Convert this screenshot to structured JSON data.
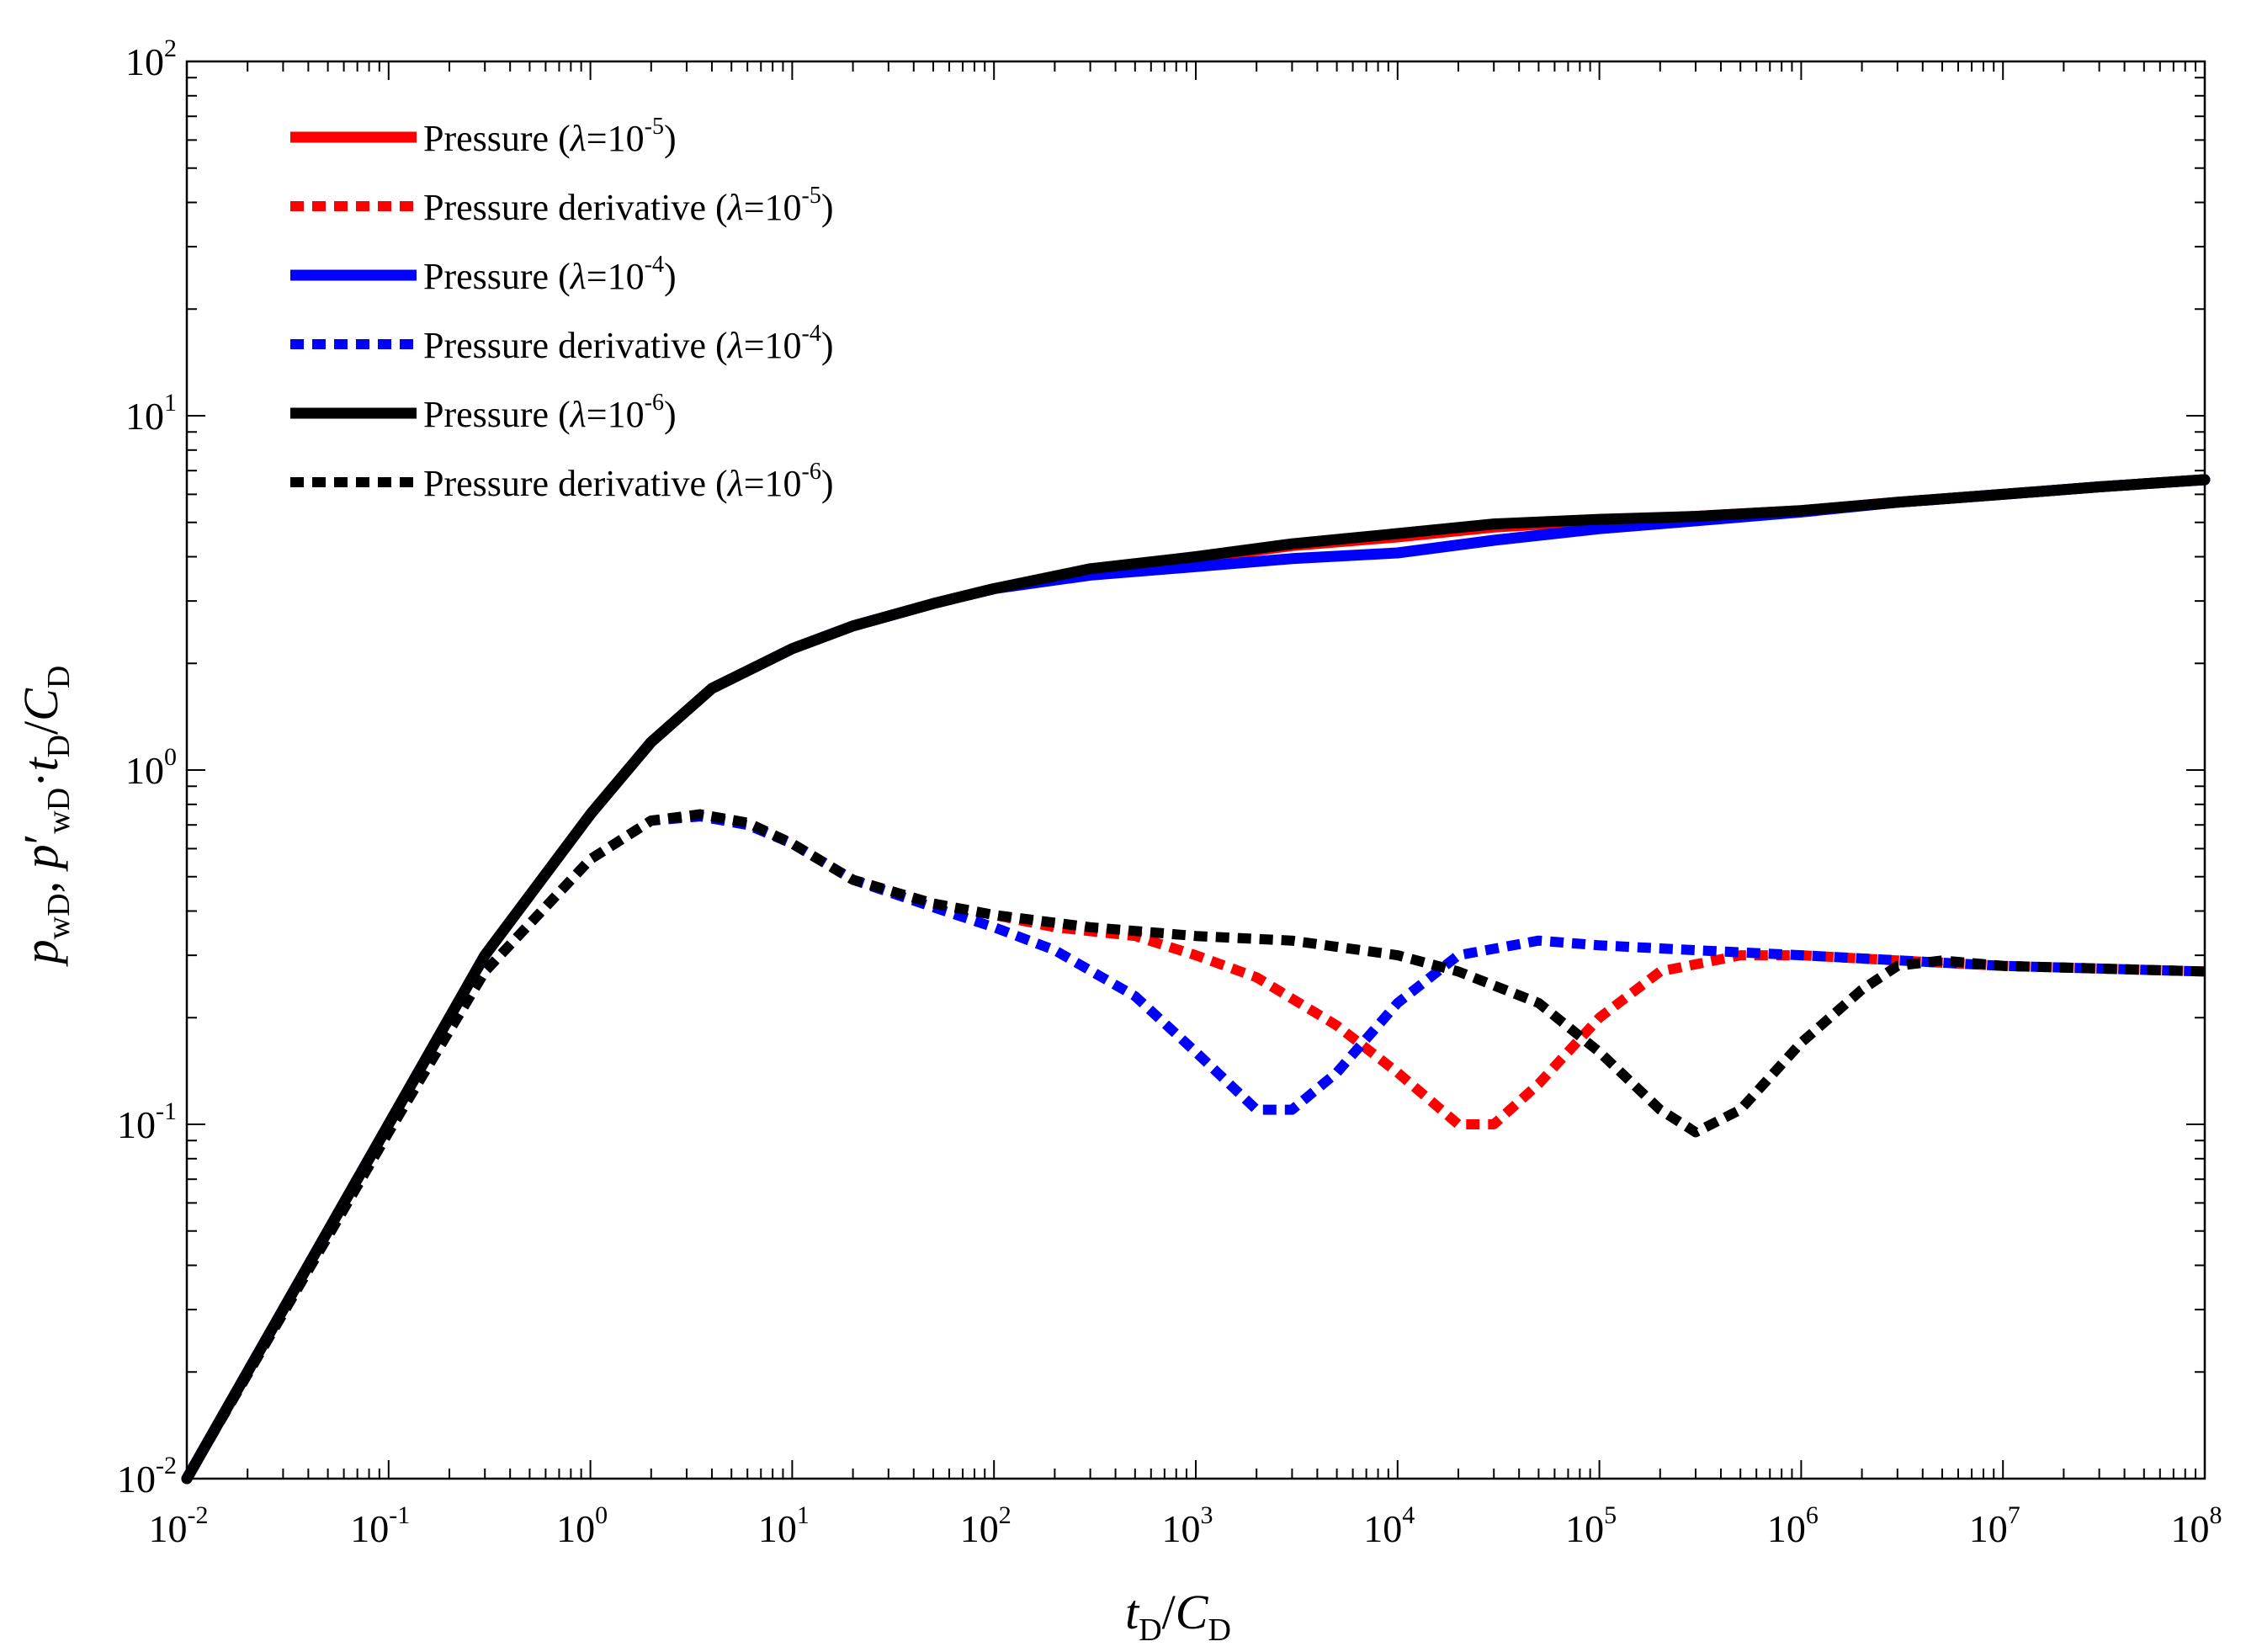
{
  "chart_data": {
    "type": "line",
    "title": "",
    "xlabel": "tD/CD",
    "ylabel": "pwD, p'wD·tD/CD",
    "x_scale": "log",
    "y_scale": "log",
    "xlim": [
      0.01,
      100000000
    ],
    "ylim": [
      0.01,
      100
    ],
    "x_ticks": [
      {
        "base": "10",
        "exp": "-2"
      },
      {
        "base": "10",
        "exp": "-1"
      },
      {
        "base": "10",
        "exp": "0"
      },
      {
        "base": "10",
        "exp": "1"
      },
      {
        "base": "10",
        "exp": "2"
      },
      {
        "base": "10",
        "exp": "3"
      },
      {
        "base": "10",
        "exp": "4"
      },
      {
        "base": "10",
        "exp": "5"
      },
      {
        "base": "10",
        "exp": "6"
      },
      {
        "base": "10",
        "exp": "7"
      },
      {
        "base": "10",
        "exp": "8"
      }
    ],
    "y_ticks": [
      {
        "base": "10",
        "exp": "-2"
      },
      {
        "base": "10",
        "exp": "-1"
      },
      {
        "base": "10",
        "exp": "0"
      },
      {
        "base": "10",
        "exp": "1"
      },
      {
        "base": "10",
        "exp": "2"
      }
    ],
    "grid": false,
    "legend_position": "top-left",
    "series": [
      {
        "name": "Pressure (λ=10-5)",
        "label_main": "Pressure (",
        "label_lambda": "λ",
        "label_eq": "=10",
        "label_exp": "-5",
        "label_close": ")",
        "color": "#ff0000",
        "style": "solid",
        "points": [
          [
            0.01,
            0.01
          ],
          [
            0.1,
            0.1
          ],
          [
            0.3,
            0.3
          ],
          [
            1,
            0.75
          ],
          [
            2,
            1.2
          ],
          [
            4,
            1.7
          ],
          [
            10,
            2.2
          ],
          [
            20,
            2.55
          ],
          [
            50,
            2.95
          ],
          [
            100,
            3.25
          ],
          [
            300,
            3.65
          ],
          [
            1000,
            3.95
          ],
          [
            3000,
            4.3
          ],
          [
            10000,
            4.55
          ],
          [
            30000,
            4.85
          ],
          [
            100000,
            5.05
          ],
          [
            300000,
            5.2
          ],
          [
            1000000,
            5.4
          ],
          [
            3000000,
            5.7
          ],
          [
            10000000,
            6.0
          ],
          [
            30000000,
            6.3
          ],
          [
            100000000,
            6.6
          ]
        ]
      },
      {
        "name": "Pressure derivative (λ=10-5)",
        "label_main": "Pressure derivative (",
        "label_lambda": "λ",
        "label_eq": "=10",
        "label_exp": "-5",
        "label_close": ")",
        "color": "#ff0000",
        "style": "dotted",
        "points": [
          [
            0.01,
            0.01
          ],
          [
            0.1,
            0.095
          ],
          [
            0.3,
            0.27
          ],
          [
            1,
            0.56
          ],
          [
            2,
            0.72
          ],
          [
            3.5,
            0.75
          ],
          [
            6,
            0.71
          ],
          [
            10,
            0.62
          ],
          [
            20,
            0.49
          ],
          [
            50,
            0.42
          ],
          [
            100,
            0.39
          ],
          [
            200,
            0.36
          ],
          [
            500,
            0.34
          ],
          [
            1000,
            0.3
          ],
          [
            2000,
            0.26
          ],
          [
            5000,
            0.19
          ],
          [
            10000,
            0.14
          ],
          [
            20000,
            0.1
          ],
          [
            30000,
            0.1
          ],
          [
            50000,
            0.13
          ],
          [
            100000,
            0.2
          ],
          [
            200000,
            0.27
          ],
          [
            500000,
            0.3
          ],
          [
            1000000,
            0.3
          ],
          [
            3000000,
            0.29
          ],
          [
            10000000,
            0.28
          ],
          [
            100000000,
            0.27
          ]
        ]
      },
      {
        "name": "Pressure (λ=10-4)",
        "label_main": "Pressure (",
        "label_lambda": "λ",
        "label_eq": "=10",
        "label_exp": "-4",
        "label_close": ")",
        "color": "#0000ff",
        "style": "solid",
        "points": [
          [
            0.01,
            0.01
          ],
          [
            0.1,
            0.1
          ],
          [
            0.3,
            0.3
          ],
          [
            1,
            0.75
          ],
          [
            2,
            1.2
          ],
          [
            4,
            1.7
          ],
          [
            10,
            2.2
          ],
          [
            20,
            2.55
          ],
          [
            50,
            2.95
          ],
          [
            100,
            3.25
          ],
          [
            300,
            3.55
          ],
          [
            1000,
            3.75
          ],
          [
            3000,
            3.95
          ],
          [
            10000,
            4.1
          ],
          [
            30000,
            4.45
          ],
          [
            100000,
            4.8
          ],
          [
            300000,
            5.05
          ],
          [
            1000000,
            5.35
          ],
          [
            3000000,
            5.7
          ],
          [
            10000000,
            6.0
          ],
          [
            30000000,
            6.3
          ],
          [
            100000000,
            6.6
          ]
        ]
      },
      {
        "name": "Pressure derivative (λ=10-4)",
        "label_main": "Pressure derivative (",
        "label_lambda": "λ",
        "label_eq": "=10",
        "label_exp": "-4",
        "label_close": ")",
        "color": "#0000ff",
        "style": "dotted",
        "points": [
          [
            0.01,
            0.01
          ],
          [
            0.1,
            0.095
          ],
          [
            0.3,
            0.27
          ],
          [
            1,
            0.56
          ],
          [
            2,
            0.72
          ],
          [
            3.5,
            0.74
          ],
          [
            6,
            0.7
          ],
          [
            10,
            0.62
          ],
          [
            20,
            0.49
          ],
          [
            50,
            0.41
          ],
          [
            100,
            0.36
          ],
          [
            200,
            0.31
          ],
          [
            500,
            0.23
          ],
          [
            1000,
            0.16
          ],
          [
            2000,
            0.11
          ],
          [
            3000,
            0.11
          ],
          [
            5000,
            0.14
          ],
          [
            10000,
            0.22
          ],
          [
            20000,
            0.3
          ],
          [
            50000,
            0.33
          ],
          [
            100000,
            0.32
          ],
          [
            300000,
            0.31
          ],
          [
            1000000,
            0.3
          ],
          [
            10000000,
            0.28
          ],
          [
            100000000,
            0.27
          ]
        ]
      },
      {
        "name": "Pressure (λ=10-6)",
        "label_main": "Pressure (",
        "label_lambda": "λ",
        "label_eq": "=10",
        "label_exp": "-6",
        "label_close": ")",
        "color": "#000000",
        "style": "solid",
        "points": [
          [
            0.01,
            0.01
          ],
          [
            0.1,
            0.1
          ],
          [
            0.3,
            0.3
          ],
          [
            1,
            0.75
          ],
          [
            2,
            1.2
          ],
          [
            4,
            1.7
          ],
          [
            10,
            2.2
          ],
          [
            20,
            2.55
          ],
          [
            50,
            2.95
          ],
          [
            100,
            3.25
          ],
          [
            300,
            3.7
          ],
          [
            1000,
            4.0
          ],
          [
            3000,
            4.35
          ],
          [
            10000,
            4.65
          ],
          [
            30000,
            4.95
          ],
          [
            100000,
            5.1
          ],
          [
            300000,
            5.2
          ],
          [
            1000000,
            5.4
          ],
          [
            3000000,
            5.7
          ],
          [
            10000000,
            6.0
          ],
          [
            30000000,
            6.3
          ],
          [
            100000000,
            6.6
          ]
        ]
      },
      {
        "name": "Pressure derivative (λ=10-6)",
        "label_main": "Pressure derivative (",
        "label_lambda": "λ",
        "label_eq": "=10",
        "label_exp": "-6",
        "label_close": ")",
        "color": "#000000",
        "style": "dotted",
        "points": [
          [
            0.01,
            0.01
          ],
          [
            0.1,
            0.095
          ],
          [
            0.3,
            0.27
          ],
          [
            1,
            0.56
          ],
          [
            2,
            0.72
          ],
          [
            3.5,
            0.75
          ],
          [
            6,
            0.71
          ],
          [
            10,
            0.62
          ],
          [
            20,
            0.49
          ],
          [
            50,
            0.42
          ],
          [
            100,
            0.39
          ],
          [
            300,
            0.36
          ],
          [
            1000,
            0.34
          ],
          [
            3000,
            0.33
          ],
          [
            10000,
            0.3
          ],
          [
            20000,
            0.27
          ],
          [
            50000,
            0.22
          ],
          [
            100000,
            0.16
          ],
          [
            200000,
            0.11
          ],
          [
            300000,
            0.095
          ],
          [
            500000,
            0.11
          ],
          [
            1000000,
            0.17
          ],
          [
            2000000,
            0.24
          ],
          [
            3000000,
            0.28
          ],
          [
            5000000,
            0.29
          ],
          [
            10000000,
            0.28
          ],
          [
            100000000,
            0.27
          ]
        ]
      }
    ]
  }
}
